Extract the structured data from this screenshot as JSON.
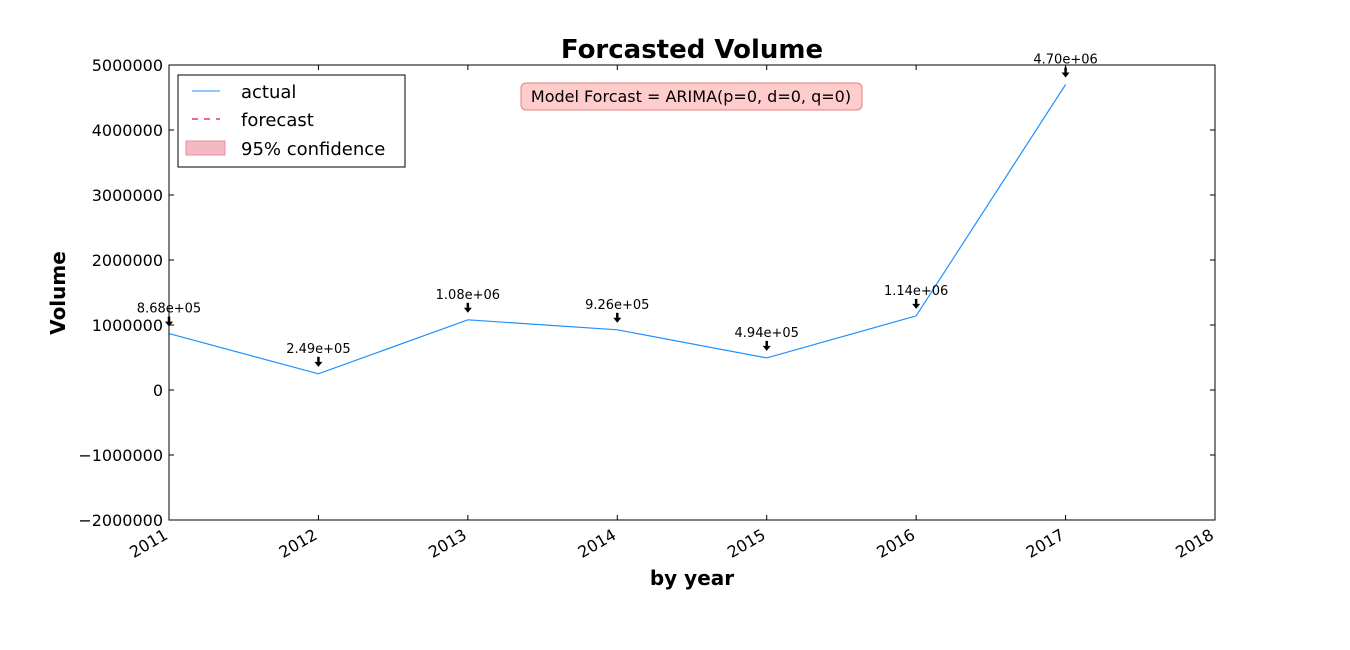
{
  "chart_data": {
    "type": "line",
    "title": "Forcasted Volume",
    "xlabel": "by year",
    "ylabel": "Volume",
    "xlim": [
      "2011",
      "2018"
    ],
    "ylim": [
      -2000000,
      5000000
    ],
    "x_ticks": [
      "2011",
      "2012",
      "2013",
      "2014",
      "2015",
      "2016",
      "2017",
      "2018"
    ],
    "y_ticks": [
      {
        "value": -2000000,
        "label": "−2000000"
      },
      {
        "value": -1000000,
        "label": "−1000000"
      },
      {
        "value": 0,
        "label": "0"
      },
      {
        "value": 1000000,
        "label": "1000000"
      },
      {
        "value": 2000000,
        "label": "2000000"
      },
      {
        "value": 3000000,
        "label": "3000000"
      },
      {
        "value": 4000000,
        "label": "4000000"
      },
      {
        "value": 5000000,
        "label": "5000000"
      }
    ],
    "grid": false,
    "legend_position": "top-left",
    "legend": [
      {
        "label": "actual",
        "style": "solid",
        "color": "#1e90ff"
      },
      {
        "label": "forecast",
        "style": "dashed",
        "color": "#dc143c"
      },
      {
        "label": "95% confidence",
        "style": "fill",
        "color": "#f4b9c3"
      }
    ],
    "annotation_box": {
      "text": "Model Forcast = ARIMA(p=0, d=0, q=0)",
      "bg": "#ffcccc",
      "border": "#e08080"
    },
    "series": [
      {
        "name": "actual",
        "color": "#1e90ff",
        "x": [
          "2011",
          "2012",
          "2013",
          "2014",
          "2015",
          "2016",
          "2017"
        ],
        "values": [
          868000,
          249000,
          1080000,
          926000,
          494000,
          1140000,
          4700000
        ]
      }
    ],
    "point_labels": [
      {
        "x": "2011",
        "value": 868000,
        "label": "8.68e+05"
      },
      {
        "x": "2012",
        "value": 249000,
        "label": "2.49e+05"
      },
      {
        "x": "2013",
        "value": 1080000,
        "label": "1.08e+06"
      },
      {
        "x": "2014",
        "value": 926000,
        "label": "9.26e+05"
      },
      {
        "x": "2015",
        "value": 494000,
        "label": "4.94e+05"
      },
      {
        "x": "2016",
        "value": 1140000,
        "label": "1.14e+06"
      },
      {
        "x": "2017",
        "value": 4700000,
        "label": "4.70e+06"
      }
    ]
  }
}
